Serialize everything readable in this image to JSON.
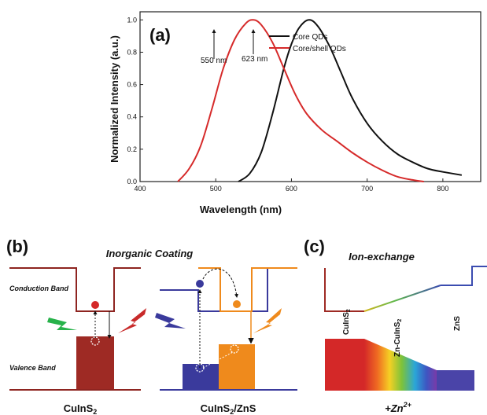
{
  "panel_a": {
    "label": "(a)",
    "xlabel": "Wavelength (nm)",
    "ylabel": "Normalized Intensity (a.u.)",
    "x_ticks": [
      "400",
      "500",
      "600",
      "700",
      "800"
    ],
    "y_ticks": [
      "0.0",
      "0.2",
      "0.4",
      "0.6",
      "0.8",
      "1.0"
    ],
    "annotation_core_shell": "550 nm",
    "annotation_core": "623 nm",
    "legend": [
      {
        "label": "Core QDs",
        "color": "#111111"
      },
      {
        "label": "Core/shell QDs",
        "color": "#d62a2a"
      }
    ]
  },
  "chart_data": {
    "type": "line",
    "xlabel": "Wavelength (nm)",
    "ylabel": "Normalized Intensity (a.u.)",
    "xlim": [
      400,
      850
    ],
    "ylim": [
      0,
      1.05
    ],
    "series": [
      {
        "name": "Core QDs",
        "color": "#111111",
        "x": [
          530,
          545,
          560,
          575,
          590,
          600,
          610,
          623,
          635,
          650,
          665,
          680,
          700,
          720,
          740,
          760,
          780,
          800,
          825
        ],
        "y": [
          0.0,
          0.05,
          0.18,
          0.42,
          0.7,
          0.85,
          0.95,
          1.0,
          0.96,
          0.84,
          0.68,
          0.52,
          0.36,
          0.25,
          0.17,
          0.12,
          0.08,
          0.06,
          0.04
        ]
      },
      {
        "name": "Core/shell QDs",
        "color": "#d62a2a",
        "x": [
          450,
          465,
          480,
          495,
          510,
          525,
          540,
          550,
          560,
          575,
          590,
          605,
          620,
          640,
          660,
          680,
          700,
          720,
          740,
          760,
          775
        ],
        "y": [
          0.0,
          0.08,
          0.22,
          0.45,
          0.7,
          0.88,
          0.98,
          1.0,
          0.97,
          0.86,
          0.7,
          0.54,
          0.42,
          0.32,
          0.25,
          0.18,
          0.12,
          0.07,
          0.03,
          0.01,
          0.0
        ]
      }
    ]
  },
  "panel_b": {
    "label": "(b)",
    "title": "Inorganic Coating",
    "conduction_band": "Conduction Band",
    "valence_band": "Valence Band",
    "caption_left": "CuInS",
    "caption_left_sub": "2",
    "caption_right": "CuInS",
    "caption_right_sub": "2",
    "caption_right_suffix": "/ZnS"
  },
  "panel_c": {
    "label": "(c)",
    "title": "Ion-exchange",
    "label_cuins": "CuInS",
    "label_cuins_sub": "2",
    "label_zn": "Zn-CuInS",
    "label_zn_sub": "2",
    "label_zns": "ZnS",
    "caption": "+Zn",
    "caption_sup": "2+"
  },
  "colors": {
    "core": "#111111",
    "core_shell": "#d62a2a",
    "cuins2": "#9e2a24",
    "core_blue": "#3a3a9c",
    "shell_orange": "#ef8a1c",
    "valence_red": "#c43a3a",
    "zns_blue": "#4a44a8"
  }
}
